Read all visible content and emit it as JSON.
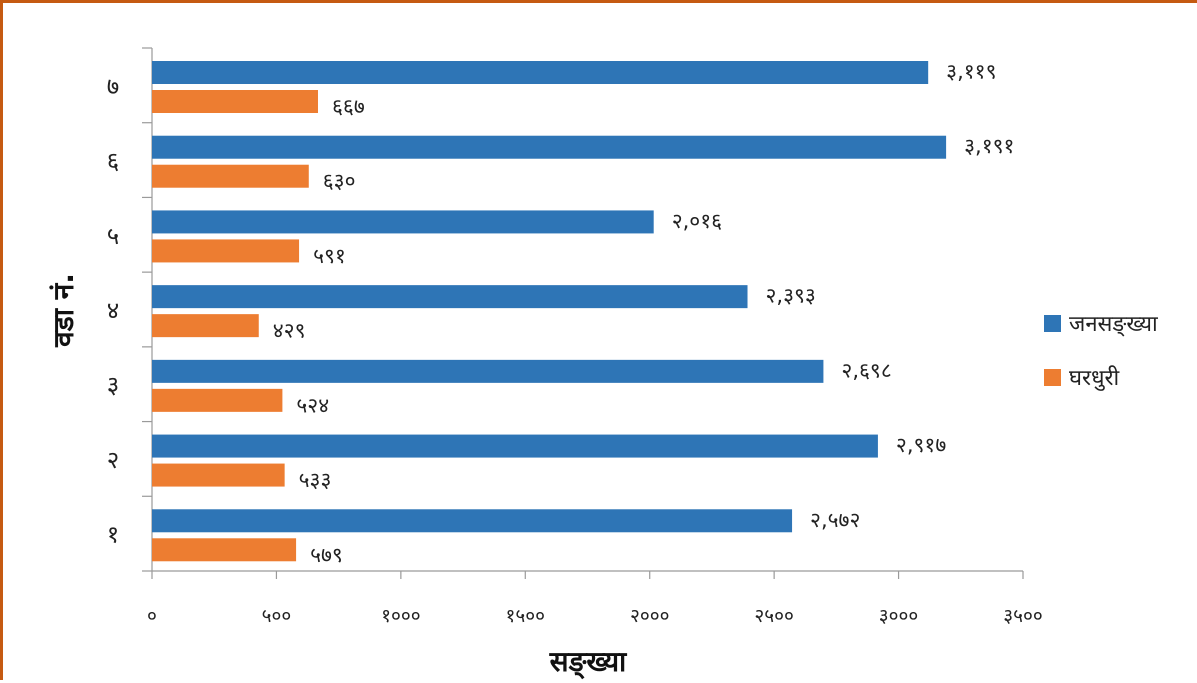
{
  "chart_data": {
    "type": "bar",
    "orientation": "horizontal",
    "title": "",
    "xlabel": "सङ्ख्या",
    "ylabel": "वडा नं.",
    "xlim": [
      0,
      3500
    ],
    "x_ticks": [
      0,
      500,
      1000,
      1500,
      2000,
      2500,
      3000,
      3500
    ],
    "x_tick_labels": [
      "०",
      "५००",
      "१०००",
      "१५००",
      "२०००",
      "२५००",
      "३०००",
      "३५००"
    ],
    "categories": [
      "१",
      "२",
      "३",
      "४",
      "५",
      "६",
      "७"
    ],
    "series": [
      {
        "name": "जनसङ्ख्या",
        "color": "#2e75b6",
        "values": [
          2572,
          2917,
          2698,
          2393,
          2016,
          3191,
          3119
        ],
        "labels": [
          "२,५७२",
          "२,९१७",
          "२,६९८",
          "२,३९३",
          "२,०१६",
          "३,१९१",
          "३,११९"
        ]
      },
      {
        "name": "घरधुरी",
        "color": "#ed7d31",
        "values": [
          579,
          533,
          524,
          429,
          591,
          630,
          667
        ],
        "labels": [
          "५७९",
          "५३३",
          "५२४",
          "४२९",
          "५९१",
          "६३०",
          "६६७"
        ]
      }
    ],
    "legend_position": "right",
    "grid": false
  }
}
